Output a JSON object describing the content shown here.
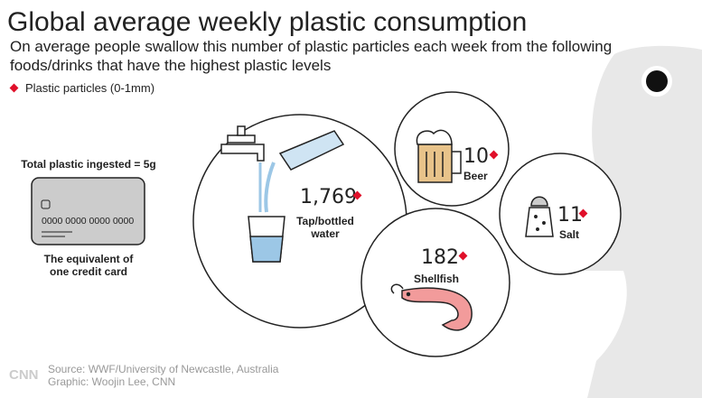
{
  "header": {
    "title": "Global average weekly plastic consumption",
    "subtitle": [
      "On average people swallow this number of plastic particles each week from the following",
      "foods/drinks that have the highest plastic levels"
    ]
  },
  "legend": "Plastic particles (0-1mm)",
  "card": {
    "label": "Total plastic ingested = 5g",
    "number": "0000 0000 0000 0000",
    "caption": [
      "The equivalent of",
      "one credit card"
    ]
  },
  "items": [
    {
      "value": "1,769",
      "label": [
        "Tap/bottled",
        "water"
      ]
    },
    {
      "value": "10",
      "label": [
        "Beer"
      ]
    },
    {
      "value": "11",
      "label": [
        "Salt"
      ]
    },
    {
      "value": "182",
      "label": [
        "Shellfish"
      ]
    }
  ],
  "footer": {
    "logo": "CNN",
    "source": "Source: WWF/University of Newcastle, Australia",
    "credit": "Graphic: Woojin Lee, CNN"
  }
}
